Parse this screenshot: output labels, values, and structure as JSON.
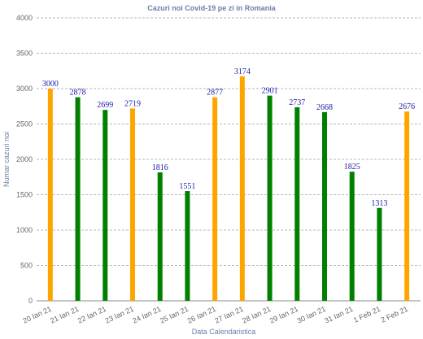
{
  "chart_data": {
    "type": "bar",
    "title": "Cazuri noi Covid-19 pe zi in Romania",
    "xlabel": "Data Calendaristica",
    "ylabel": "Numar cazuri noi",
    "ylim": [
      0,
      4000
    ],
    "yticks": [
      0,
      500,
      1000,
      1500,
      2000,
      2500,
      3000,
      3500,
      4000
    ],
    "grid": true,
    "categories": [
      "20 Ian 21",
      "21 Ian 21",
      "22 Ian 21",
      "23 Ian 21",
      "24 Ian 21",
      "25 Ian 21",
      "26 Ian 21",
      "27 Ian 21",
      "28 Ian 21",
      "29 Ian 21",
      "30 Ian 21",
      "31 Ian 21",
      "1 Feb 21",
      "2 Feb 21"
    ],
    "values": [
      3000,
      2878,
      2699,
      2719,
      1816,
      1551,
      2877,
      3174,
      2901,
      2737,
      2668,
      1825,
      1313,
      2676
    ],
    "colors": [
      "#ffa500",
      "#008000",
      "#008000",
      "#ffa500",
      "#008000",
      "#008000",
      "#ffa500",
      "#ffa500",
      "#008000",
      "#008000",
      "#008000",
      "#008000",
      "#008000",
      "#ffa500"
    ]
  }
}
